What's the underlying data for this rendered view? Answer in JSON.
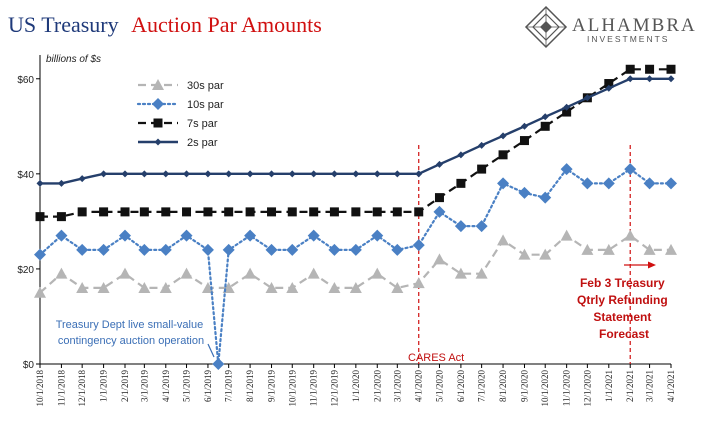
{
  "title": {
    "part1": "US Treasury",
    "part2": "Auction Par Amounts"
  },
  "logo": {
    "name": "ALHAMBRA",
    "sub": "INVESTMENTS",
    "icon": "alhambra-diamond-logo"
  },
  "colors": {
    "accent_red": "#d01010",
    "title_blue": "#1f3a7a",
    "series_30s": "#b5b5b5",
    "series_10s": "#4a80c4",
    "series_7s": "#111111",
    "series_2s": "#253f6b"
  },
  "annotations": {
    "contingency": [
      "Treasury Dept live small-value",
      "contingency auction operation"
    ],
    "cares": "CARES Act",
    "feb3": [
      "Feb 3 Treasury",
      "Qtrly Refunding",
      "Statement",
      "Forecast"
    ]
  },
  "chart_data": {
    "type": "line",
    "ylabel": "billions of $s",
    "ylim": [
      0,
      65
    ],
    "yticks": [
      0,
      20,
      40,
      60
    ],
    "ytick_labels": [
      "$0",
      "$20",
      "$40",
      "$60"
    ],
    "grid": false,
    "legend_position": "top-left",
    "x_labels": [
      "10/1/2018",
      "11/1/2018",
      "12/1/2018",
      "1/1/2019",
      "2/1/2019",
      "3/1/2019",
      "4/1/2019",
      "5/1/2019",
      "6/1/2019",
      "7/1/2019",
      "8/1/2019",
      "9/1/2019",
      "10/1/2019",
      "11/1/2019",
      "12/1/2019",
      "1/1/2020",
      "2/1/2020",
      "3/1/2020",
      "4/1/2020",
      "5/1/2020",
      "6/1/2020",
      "7/1/2020",
      "8/1/2020",
      "9/1/2020",
      "10/1/2020",
      "11/1/2020",
      "12/1/2020",
      "1/1/2021",
      "2/1/2021",
      "3/1/2021",
      "4/1/2021"
    ],
    "vlines": [
      "4/1/2020",
      "2/1/2021"
    ],
    "series": [
      {
        "name": "30s par",
        "style": "dashed",
        "marker": "triangle",
        "color": "#b5b5b5",
        "points": [
          [
            "10/1/2018",
            15
          ],
          [
            "11/1/2018",
            19
          ],
          [
            "12/1/2018",
            16
          ],
          [
            "1/1/2019",
            16
          ],
          [
            "2/1/2019",
            19
          ],
          [
            "3/1/2019",
            16
          ],
          [
            "4/1/2019",
            16
          ],
          [
            "5/1/2019",
            19
          ],
          [
            "6/1/2019",
            16
          ],
          [
            "7/1/2019",
            16
          ],
          [
            "8/1/2019",
            19
          ],
          [
            "9/1/2019",
            16
          ],
          [
            "10/1/2019",
            16
          ],
          [
            "11/1/2019",
            19
          ],
          [
            "12/1/2019",
            16
          ],
          [
            "1/1/2020",
            16
          ],
          [
            "2/1/2020",
            19
          ],
          [
            "3/1/2020",
            16
          ],
          [
            "4/1/2020",
            17
          ],
          [
            "5/1/2020",
            22
          ],
          [
            "6/1/2020",
            19
          ],
          [
            "7/1/2020",
            19
          ],
          [
            "8/1/2020",
            26
          ],
          [
            "9/1/2020",
            23
          ],
          [
            "10/1/2020",
            23
          ],
          [
            "11/1/2020",
            27
          ],
          [
            "12/1/2020",
            24
          ],
          [
            "1/1/2021",
            24
          ],
          [
            "2/1/2021",
            27
          ],
          [
            "3/1/2021",
            24
          ],
          [
            "4/1/2021",
            24
          ]
        ]
      },
      {
        "name": "10s par",
        "style": "dotted",
        "marker": "diamond",
        "color": "#4a80c4",
        "points": [
          [
            "10/1/2018",
            23
          ],
          [
            "11/1/2018",
            27
          ],
          [
            "12/1/2018",
            24
          ],
          [
            "1/1/2019",
            24
          ],
          [
            "2/1/2019",
            27
          ],
          [
            "3/1/2019",
            24
          ],
          [
            "4/1/2019",
            24
          ],
          [
            "5/1/2019",
            27
          ],
          [
            "6/1/2019",
            24
          ],
          [
            "6/16/2019",
            0
          ],
          [
            "7/1/2019",
            24
          ],
          [
            "8/1/2019",
            27
          ],
          [
            "9/1/2019",
            24
          ],
          [
            "10/1/2019",
            24
          ],
          [
            "11/1/2019",
            27
          ],
          [
            "12/1/2019",
            24
          ],
          [
            "1/1/2020",
            24
          ],
          [
            "2/1/2020",
            27
          ],
          [
            "3/1/2020",
            24
          ],
          [
            "4/1/2020",
            25
          ],
          [
            "5/1/2020",
            32
          ],
          [
            "6/1/2020",
            29
          ],
          [
            "7/1/2020",
            29
          ],
          [
            "8/1/2020",
            38
          ],
          [
            "9/1/2020",
            36
          ],
          [
            "10/1/2020",
            35
          ],
          [
            "11/1/2020",
            41
          ],
          [
            "12/1/2020",
            38
          ],
          [
            "1/1/2021",
            38
          ],
          [
            "2/1/2021",
            41
          ],
          [
            "3/1/2021",
            38
          ],
          [
            "4/1/2021",
            38
          ]
        ]
      },
      {
        "name": "7s par",
        "style": "dashed",
        "marker": "square",
        "color": "#111111",
        "points": [
          [
            "10/1/2018",
            31
          ],
          [
            "11/1/2018",
            31
          ],
          [
            "12/1/2018",
            32
          ],
          [
            "1/1/2019",
            32
          ],
          [
            "2/1/2019",
            32
          ],
          [
            "3/1/2019",
            32
          ],
          [
            "4/1/2019",
            32
          ],
          [
            "5/1/2019",
            32
          ],
          [
            "6/1/2019",
            32
          ],
          [
            "7/1/2019",
            32
          ],
          [
            "8/1/2019",
            32
          ],
          [
            "9/1/2019",
            32
          ],
          [
            "10/1/2019",
            32
          ],
          [
            "11/1/2019",
            32
          ],
          [
            "12/1/2019",
            32
          ],
          [
            "1/1/2020",
            32
          ],
          [
            "2/1/2020",
            32
          ],
          [
            "3/1/2020",
            32
          ],
          [
            "4/1/2020",
            32
          ],
          [
            "5/1/2020",
            35
          ],
          [
            "6/1/2020",
            38
          ],
          [
            "7/1/2020",
            41
          ],
          [
            "8/1/2020",
            44
          ],
          [
            "9/1/2020",
            47
          ],
          [
            "10/1/2020",
            50
          ],
          [
            "11/1/2020",
            53
          ],
          [
            "12/1/2020",
            56
          ],
          [
            "1/1/2021",
            59
          ],
          [
            "2/1/2021",
            62
          ],
          [
            "3/1/2021",
            62
          ],
          [
            "4/1/2021",
            62
          ]
        ]
      },
      {
        "name": "2s par",
        "style": "solid",
        "marker": "diamond",
        "color": "#253f6b",
        "points": [
          [
            "10/1/2018",
            38
          ],
          [
            "11/1/2018",
            38
          ],
          [
            "12/1/2018",
            39
          ],
          [
            "1/1/2019",
            40
          ],
          [
            "2/1/2019",
            40
          ],
          [
            "3/1/2019",
            40
          ],
          [
            "4/1/2019",
            40
          ],
          [
            "5/1/2019",
            40
          ],
          [
            "6/1/2019",
            40
          ],
          [
            "7/1/2019",
            40
          ],
          [
            "8/1/2019",
            40
          ],
          [
            "9/1/2019",
            40
          ],
          [
            "10/1/2019",
            40
          ],
          [
            "11/1/2019",
            40
          ],
          [
            "12/1/2019",
            40
          ],
          [
            "1/1/2020",
            40
          ],
          [
            "2/1/2020",
            40
          ],
          [
            "3/1/2020",
            40
          ],
          [
            "4/1/2020",
            40
          ],
          [
            "5/1/2020",
            42
          ],
          [
            "6/1/2020",
            44
          ],
          [
            "7/1/2020",
            46
          ],
          [
            "8/1/2020",
            48
          ],
          [
            "9/1/2020",
            50
          ],
          [
            "10/1/2020",
            52
          ],
          [
            "11/1/2020",
            54
          ],
          [
            "12/1/2020",
            56
          ],
          [
            "1/1/2021",
            58
          ],
          [
            "2/1/2021",
            60
          ],
          [
            "3/1/2021",
            60
          ],
          [
            "4/1/2021",
            60
          ]
        ]
      }
    ]
  }
}
